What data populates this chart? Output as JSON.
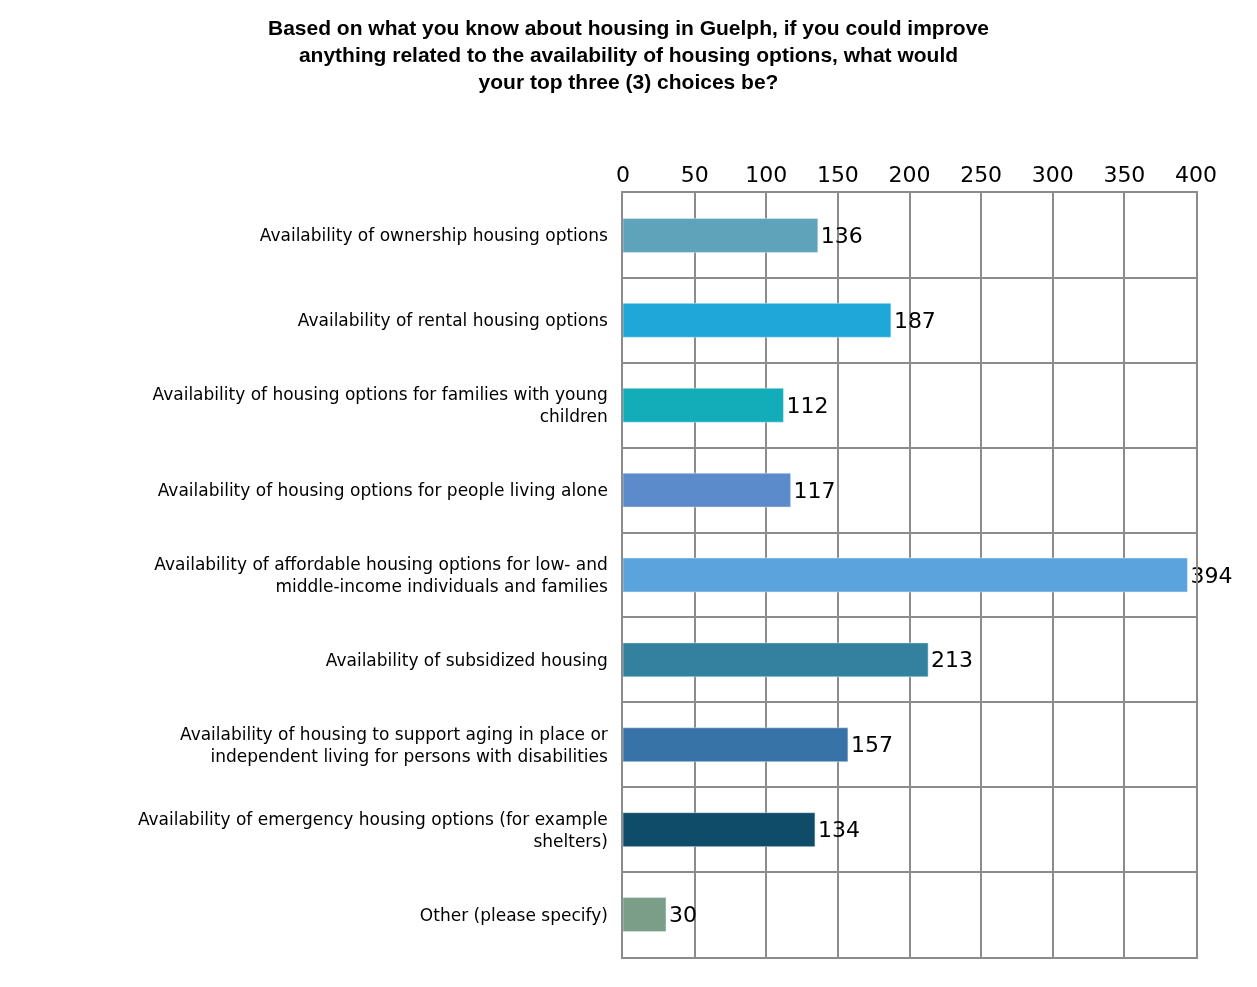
{
  "chart_data": {
    "type": "bar",
    "orientation": "horizontal",
    "title": "Based on what you know about housing in Guelph, if you could improve anything related to the availability of housing options, what would your top three (3) choices be?",
    "categories": [
      "Availability of ownership housing options",
      "Availability of rental housing options",
      "Availability of housing options for families with young children",
      "Availability of housing options for people living alone",
      "Availability of affordable housing options for low- and middle-income individuals and families",
      "Availability of subsidized housing",
      "Availability of housing to support aging in place or independent living for persons with disabilities",
      "Availability of emergency housing options (for example shelters)",
      "Other (please specify)"
    ],
    "values": [
      136,
      187,
      112,
      117,
      394,
      213,
      157,
      134,
      30
    ],
    "colors": [
      "#5ea3b9",
      "#1fa7d9",
      "#12adb8",
      "#5b8bcb",
      "#5ba3dd",
      "#33819f",
      "#3873a8",
      "#0e4c6a",
      "#7a9e87"
    ],
    "xlim": [
      0,
      400
    ],
    "xticks": [
      0,
      50,
      100,
      150,
      200,
      250,
      300,
      350,
      400
    ],
    "grid": true,
    "data_labels": true
  }
}
